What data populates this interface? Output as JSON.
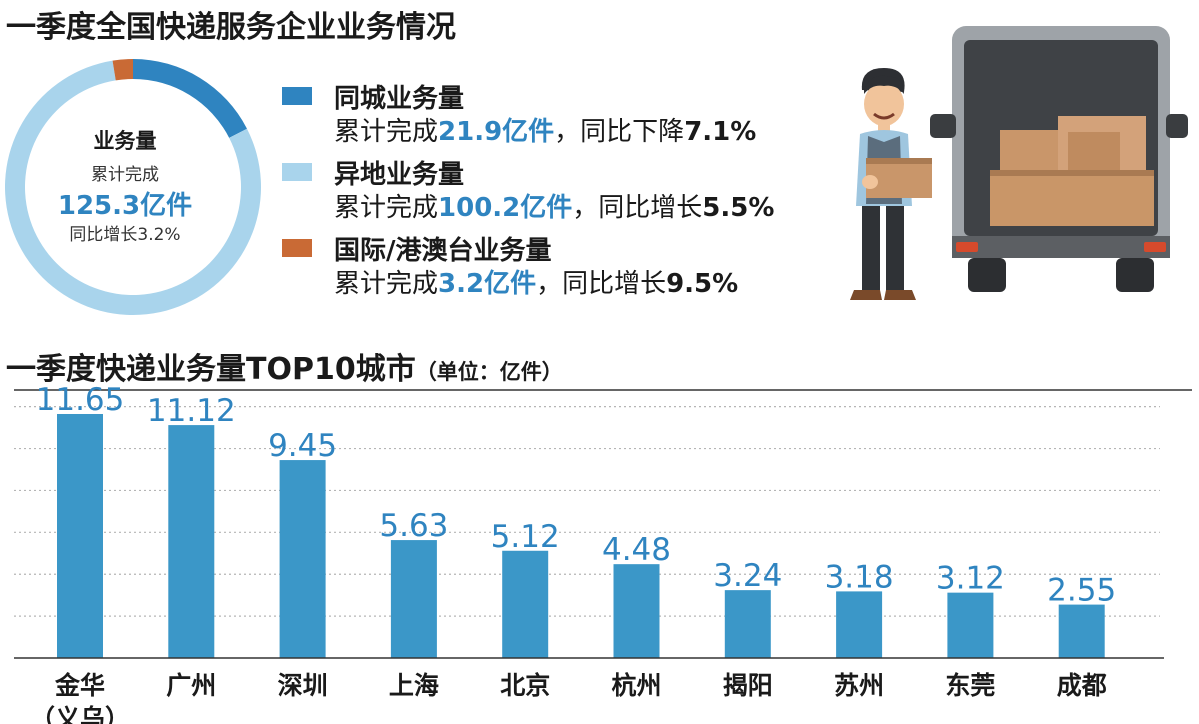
{
  "title": "一季度全国快递服务企业业务情况",
  "donut": {
    "center_title": "业务量",
    "center_line1": "累计完成",
    "center_value": "125.3亿件",
    "center_line3": "同比增长3.2%",
    "colors": {
      "same_city": "#2f84c0",
      "inter_city": "#a9d4ec",
      "international": "#c96a35"
    }
  },
  "legend": [
    {
      "name": "同城业务量",
      "prefix": "累计完成",
      "amount": "21.9亿件",
      "change": "，同比下降",
      "pct": "7.1%",
      "color": "#2f84c0"
    },
    {
      "name": "异地业务量",
      "prefix": "累计完成",
      "amount": "100.2亿件",
      "change": "，同比增长",
      "pct": "5.5%",
      "color": "#a9d4ec"
    },
    {
      "name": "国际/港澳台业务量",
      "prefix": "累计完成",
      "amount": "3.2亿件",
      "change": "，同比增长",
      "pct": "9.5%",
      "color": "#c96a35"
    }
  ],
  "bar_title": {
    "main": "一季度快递业务量TOP10城市",
    "unit": "（单位：亿件）"
  },
  "chart_data": [
    {
      "type": "pie",
      "categories": [
        "同城业务量",
        "异地业务量",
        "国际/港澳台业务量"
      ],
      "values": [
        21.9,
        100.2,
        3.2
      ],
      "total": 125.3
    },
    {
      "type": "bar",
      "categories": [
        "金华（义乌）",
        "广州",
        "深圳",
        "上海",
        "北京",
        "杭州",
        "揭阳",
        "苏州",
        "东莞",
        "成都"
      ],
      "label_lines": [
        [
          "金华",
          "（义乌）"
        ],
        [
          "广州"
        ],
        [
          "深圳"
        ],
        [
          "上海"
        ],
        [
          "北京"
        ],
        [
          "杭州"
        ],
        [
          "揭阳"
        ],
        [
          "苏州"
        ],
        [
          "东莞"
        ],
        [
          "成都"
        ]
      ],
      "values": [
        11.65,
        11.12,
        9.45,
        5.63,
        5.12,
        4.48,
        3.24,
        3.18,
        3.12,
        2.55
      ],
      "value_labels": [
        "11.65",
        "11.12",
        "9.45",
        "5.63",
        "5.12",
        "4.48",
        "3.24",
        "3.18",
        "3.12",
        "2.55"
      ],
      "ylim": [
        0,
        12.7
      ],
      "grid": true,
      "bar_color": "#3b97c8",
      "label_color": "#2f84c0"
    }
  ]
}
